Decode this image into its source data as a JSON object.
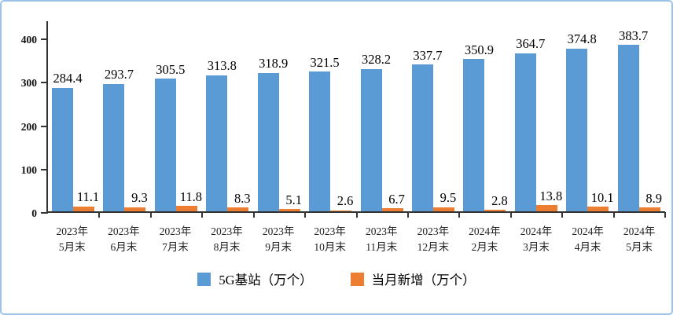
{
  "chart_data": {
    "type": "bar",
    "categories": [
      [
        "2023年",
        "5月末"
      ],
      [
        "2023年",
        "6月末"
      ],
      [
        "2023年",
        "7月末"
      ],
      [
        "2023年",
        "8月末"
      ],
      [
        "2023年",
        "9月末"
      ],
      [
        "2023年",
        "10月末"
      ],
      [
        "2023年",
        "11月末"
      ],
      [
        "2023年",
        "12月末"
      ],
      [
        "2024年",
        "2月末"
      ],
      [
        "2024年",
        "3月末"
      ],
      [
        "2024年",
        "4月末"
      ],
      [
        "2024年",
        "5月末"
      ]
    ],
    "series": [
      {
        "name": "5G基站（万个）",
        "color": "#5b9bd5",
        "values": [
          284.4,
          293.7,
          305.5,
          313.8,
          318.9,
          321.5,
          328.2,
          337.7,
          350.9,
          364.7,
          374.8,
          383.7
        ]
      },
      {
        "name": "当月新增（万个）",
        "color": "#ed7d31",
        "values": [
          11.1,
          9.3,
          11.8,
          8.3,
          5.1,
          2.6,
          6.7,
          9.5,
          2.8,
          13.8,
          10.1,
          8.9
        ]
      }
    ],
    "title": "",
    "xlabel": "",
    "ylabel": "",
    "yticks": [
      0,
      100,
      200,
      300,
      400
    ],
    "ylim": [
      0,
      441
    ],
    "grid": false,
    "legend_position": "bottom",
    "axis_color": "#333333",
    "frame_border_color": "#9dc3e6",
    "value_labels_shown": true
  }
}
